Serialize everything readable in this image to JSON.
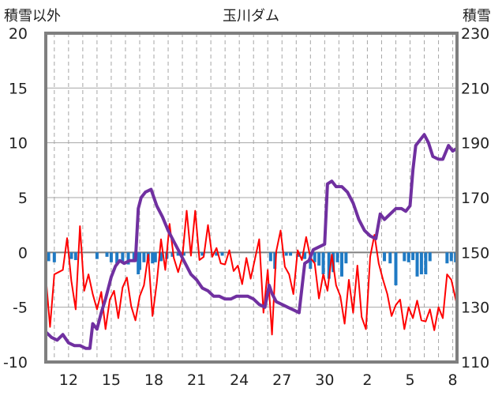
{
  "chart_data": {
    "type": "line",
    "title": "玉川ダム",
    "ylabel_left": "積雪以外",
    "ylabel_right": "積雪",
    "y_left_lim": [
      -10,
      20
    ],
    "y_left_ticks": [
      "20",
      "15",
      "10",
      "5",
      "0",
      "-5",
      "-10"
    ],
    "y_right_lim": [
      110,
      230
    ],
    "y_right_ticks": [
      "230",
      "210",
      "190",
      "170",
      "150",
      "130",
      "110"
    ],
    "x_lim": [
      10.4,
      9.3
    ],
    "x_tick_labels": [
      "12",
      "15",
      "18",
      "21",
      "24",
      "27",
      "30",
      "2",
      "5",
      "8"
    ],
    "grid": true,
    "colors": {
      "temperature": "#ff0000",
      "precipitation": "#1f7ac4",
      "snow_depth": "#7030a0",
      "frame": "#7f7f7f",
      "grid": "#a6a6a6"
    },
    "series": [
      {
        "name": "",
        "axis": "left",
        "kind": "line",
        "x": [
          10.4,
          10.7,
          11.0,
          11.3,
          11.6,
          11.9,
          12.2,
          12.5,
          12.8,
          13.1,
          13.4,
          13.7,
          14.0,
          14.3,
          14.6,
          14.9,
          15.2,
          15.5,
          15.8,
          16.1,
          16.4,
          16.7,
          17.0,
          17.3,
          17.6,
          17.9,
          18.2,
          18.5,
          18.8,
          19.1,
          19.4,
          19.7,
          20.0,
          20.3,
          20.6,
          20.9,
          21.2,
          21.5,
          21.8,
          22.1,
          22.4,
          22.7,
          23.0,
          23.3,
          23.6,
          23.9,
          24.2,
          24.5,
          24.8,
          25.1,
          25.4,
          25.7,
          26.0,
          26.3,
          26.6,
          26.9,
          27.2,
          27.5,
          27.8,
          28.1,
          28.4,
          28.7,
          29.0,
          29.3,
          29.6,
          29.9,
          30.2,
          30.5,
          30.8,
          31.1,
          31.4,
          31.7,
          32.0,
          32.3,
          32.6,
          32.9,
          33.2,
          33.5,
          33.8,
          34.1,
          34.4,
          34.7,
          35.0,
          35.3,
          35.6,
          35.9,
          36.2,
          36.5,
          36.8,
          37.1,
          37.4,
          37.7,
          38.0,
          38.3,
          38.6,
          38.9,
          39.3
        ],
        "values": [
          -2.2,
          -6.8,
          -2.0,
          -1.8,
          -1.6,
          1.3,
          -2.6,
          -5.2,
          2.4,
          -3.5,
          -2.0,
          -3.8,
          -5.2,
          -3.6,
          -7.0,
          -4.3,
          -3.5,
          -6.0,
          -3.2,
          -2.3,
          -4.9,
          -6.2,
          -4.0,
          -3.0,
          -0.2,
          -5.8,
          -2.8,
          1.2,
          -1.6,
          2.6,
          -0.5,
          -1.8,
          -0.4,
          3.8,
          -0.3,
          3.8,
          -0.7,
          -0.4,
          2.5,
          -0.4,
          0.4,
          -1.0,
          -1.1,
          0.2,
          -1.7,
          -1.2,
          -2.9,
          -0.5,
          -2.4,
          -0.6,
          1.2,
          -5.5,
          -1.6,
          -7.5,
          0.1,
          2.0,
          -1.3,
          -2.0,
          -3.8,
          0.2,
          -0.7,
          1.4,
          -0.5,
          -1.0,
          -4.2,
          -2.0,
          -3.5,
          -0.2,
          -3.0,
          -4.0,
          -6.5,
          -2.5,
          -5.5,
          -1.2,
          -5.9,
          -7.0,
          -0.4,
          1.6,
          -1.0,
          -2.5,
          -3.8,
          -5.8,
          -4.8,
          -4.3,
          -7.0,
          -5.0,
          -6.0,
          -4.4,
          -6.2,
          -6.3,
          -5.2,
          -7.1,
          -5.0,
          -6.0,
          -2.0,
          -2.5,
          -4.8
        ]
      },
      {
        "name": "",
        "axis": "left",
        "kind": "bar",
        "x": [
          10.6,
          11.0,
          12.2,
          12.5,
          14.0,
          14.7,
          15.0,
          15.4,
          15.8,
          16.2,
          16.6,
          16.9,
          17.0,
          17.3,
          17.6,
          17.9,
          18.1,
          18.5,
          18.9,
          19.3,
          19.7,
          20.1,
          21.4,
          22.4,
          22.8,
          26.2,
          26.5,
          27.3,
          27.6,
          28.2,
          28.6,
          29.0,
          29.3,
          29.6,
          29.9,
          30.3,
          30.6,
          30.9,
          31.2,
          31.5,
          34.2,
          34.6,
          35.0,
          35.6,
          35.9,
          36.2,
          36.5,
          36.8,
          37.1,
          37.4,
          38.6,
          38.9,
          39.2
        ],
        "values": [
          -0.8,
          -0.9,
          -0.6,
          -0.7,
          -0.6,
          -0.4,
          -0.9,
          -1.0,
          -0.9,
          -1.1,
          -0.8,
          -2.0,
          -1.6,
          -0.9,
          -0.8,
          -1.0,
          -0.9,
          -0.8,
          -0.6,
          -0.4,
          -0.3,
          -0.3,
          -0.3,
          -0.3,
          -0.3,
          -0.8,
          -1.5,
          -0.3,
          -0.3,
          -0.4,
          -0.6,
          -1.5,
          -0.9,
          -1.2,
          -2.0,
          -2.4,
          -1.8,
          -0.9,
          -2.2,
          -1.0,
          -0.8,
          -1.0,
          -3.0,
          -0.8,
          -0.9,
          -0.7,
          -2.2,
          -2.0,
          -2.0,
          -0.8,
          -1.0,
          -0.8,
          -0.9
        ]
      },
      {
        "name": "",
        "axis": "right",
        "kind": "line",
        "x": [
          10.4,
          10.8,
          11.2,
          11.6,
          12.0,
          12.4,
          12.8,
          13.2,
          13.5,
          13.7,
          14.0,
          14.3,
          14.6,
          15.0,
          15.3,
          15.6,
          15.9,
          16.3,
          16.7,
          16.9,
          17.1,
          17.4,
          17.8,
          18.2,
          18.6,
          19.0,
          19.4,
          19.8,
          20.2,
          20.6,
          21.0,
          21.4,
          21.8,
          22.2,
          22.6,
          23.0,
          23.4,
          23.8,
          24.2,
          24.6,
          25.0,
          25.4,
          25.8,
          26.1,
          26.3,
          26.6,
          27.0,
          27.4,
          27.8,
          28.2,
          28.6,
          28.9,
          29.2,
          29.6,
          30.0,
          30.2,
          30.5,
          30.8,
          31.2,
          31.6,
          32.0,
          32.4,
          32.8,
          33.2,
          33.6,
          33.9,
          34.2,
          34.6,
          35.0,
          35.4,
          35.7,
          36.0,
          36.2,
          36.4,
          36.7,
          37.0,
          37.3,
          37.6,
          38.0,
          38.3,
          38.7,
          39.0,
          39.3
        ],
        "values": [
          121,
          119,
          118,
          120,
          117,
          116,
          116,
          115,
          115,
          124,
          122,
          128,
          133,
          141,
          145,
          147,
          146,
          147,
          147,
          166,
          170,
          172,
          173,
          167,
          163,
          158,
          154,
          150,
          146,
          142,
          140,
          137,
          136,
          134,
          134,
          133,
          133,
          134,
          134,
          134,
          133,
          131,
          130,
          138,
          135,
          132,
          131,
          130,
          129,
          128,
          146,
          147,
          151,
          152,
          153,
          175,
          176,
          174,
          174,
          172,
          168,
          162,
          158,
          156,
          155,
          164,
          162,
          164,
          166,
          166,
          165,
          167,
          180,
          189,
          191,
          193,
          190,
          185,
          184,
          184,
          189,
          187,
          188
        ]
      }
    ]
  }
}
